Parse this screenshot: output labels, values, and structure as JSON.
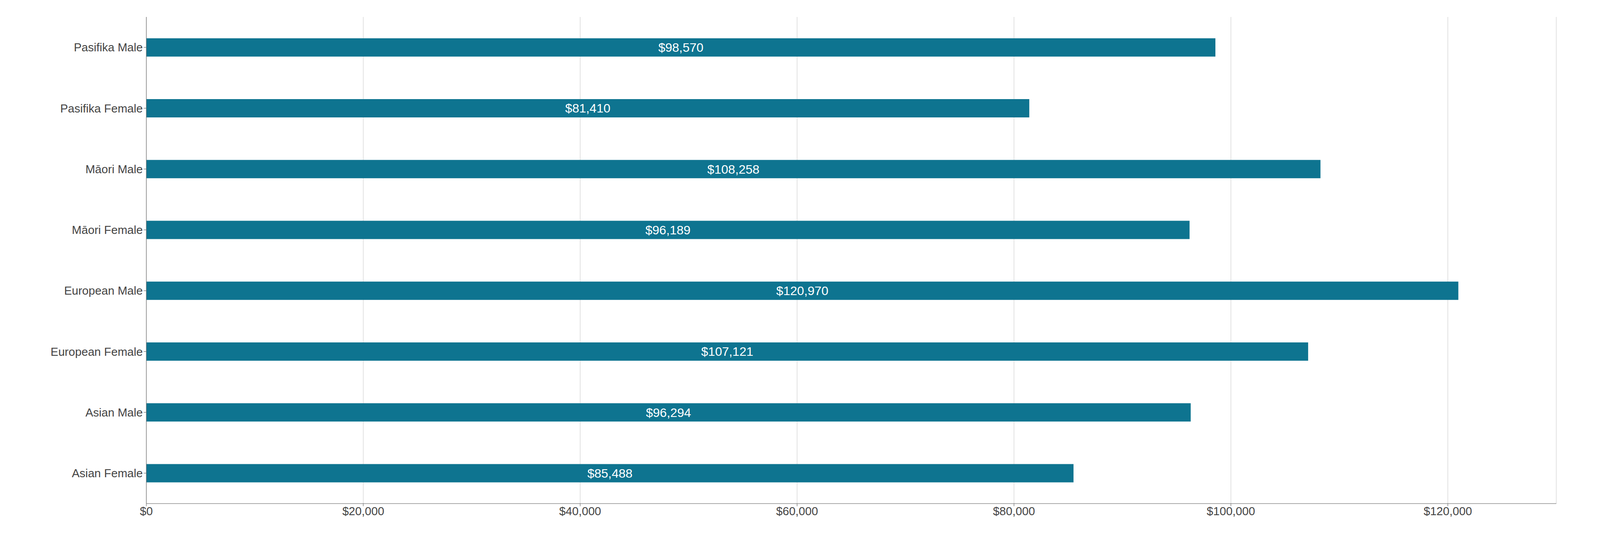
{
  "chart_data": {
    "type": "bar",
    "orientation": "horizontal",
    "categories": [
      "Pasifika Male",
      "Pasifika Female",
      "Māori Male",
      "Māori Female",
      "European Male",
      "European Female",
      "Asian Male",
      "Asian Female"
    ],
    "values": [
      98570,
      81410,
      108258,
      96189,
      120970,
      107121,
      96294,
      85488
    ],
    "value_labels": [
      "$98,570",
      "$81,410",
      "$108,258",
      "$96,189",
      "$120,970",
      "$107,121",
      "$96,294",
      "$85,488"
    ],
    "data_labels": true,
    "color": "#0e7490",
    "xlim": [
      0,
      130000
    ],
    "xticks": [
      {
        "value": 0,
        "label": "$0"
      },
      {
        "value": 20000,
        "label": "$20,000"
      },
      {
        "value": 40000,
        "label": "$40,000"
      },
      {
        "value": 60000,
        "label": "$60,000"
      },
      {
        "value": 80000,
        "label": "$80,000"
      },
      {
        "value": 100000,
        "label": "$100,000"
      },
      {
        "value": 120000,
        "label": "$120,000"
      }
    ],
    "grid": true
  }
}
